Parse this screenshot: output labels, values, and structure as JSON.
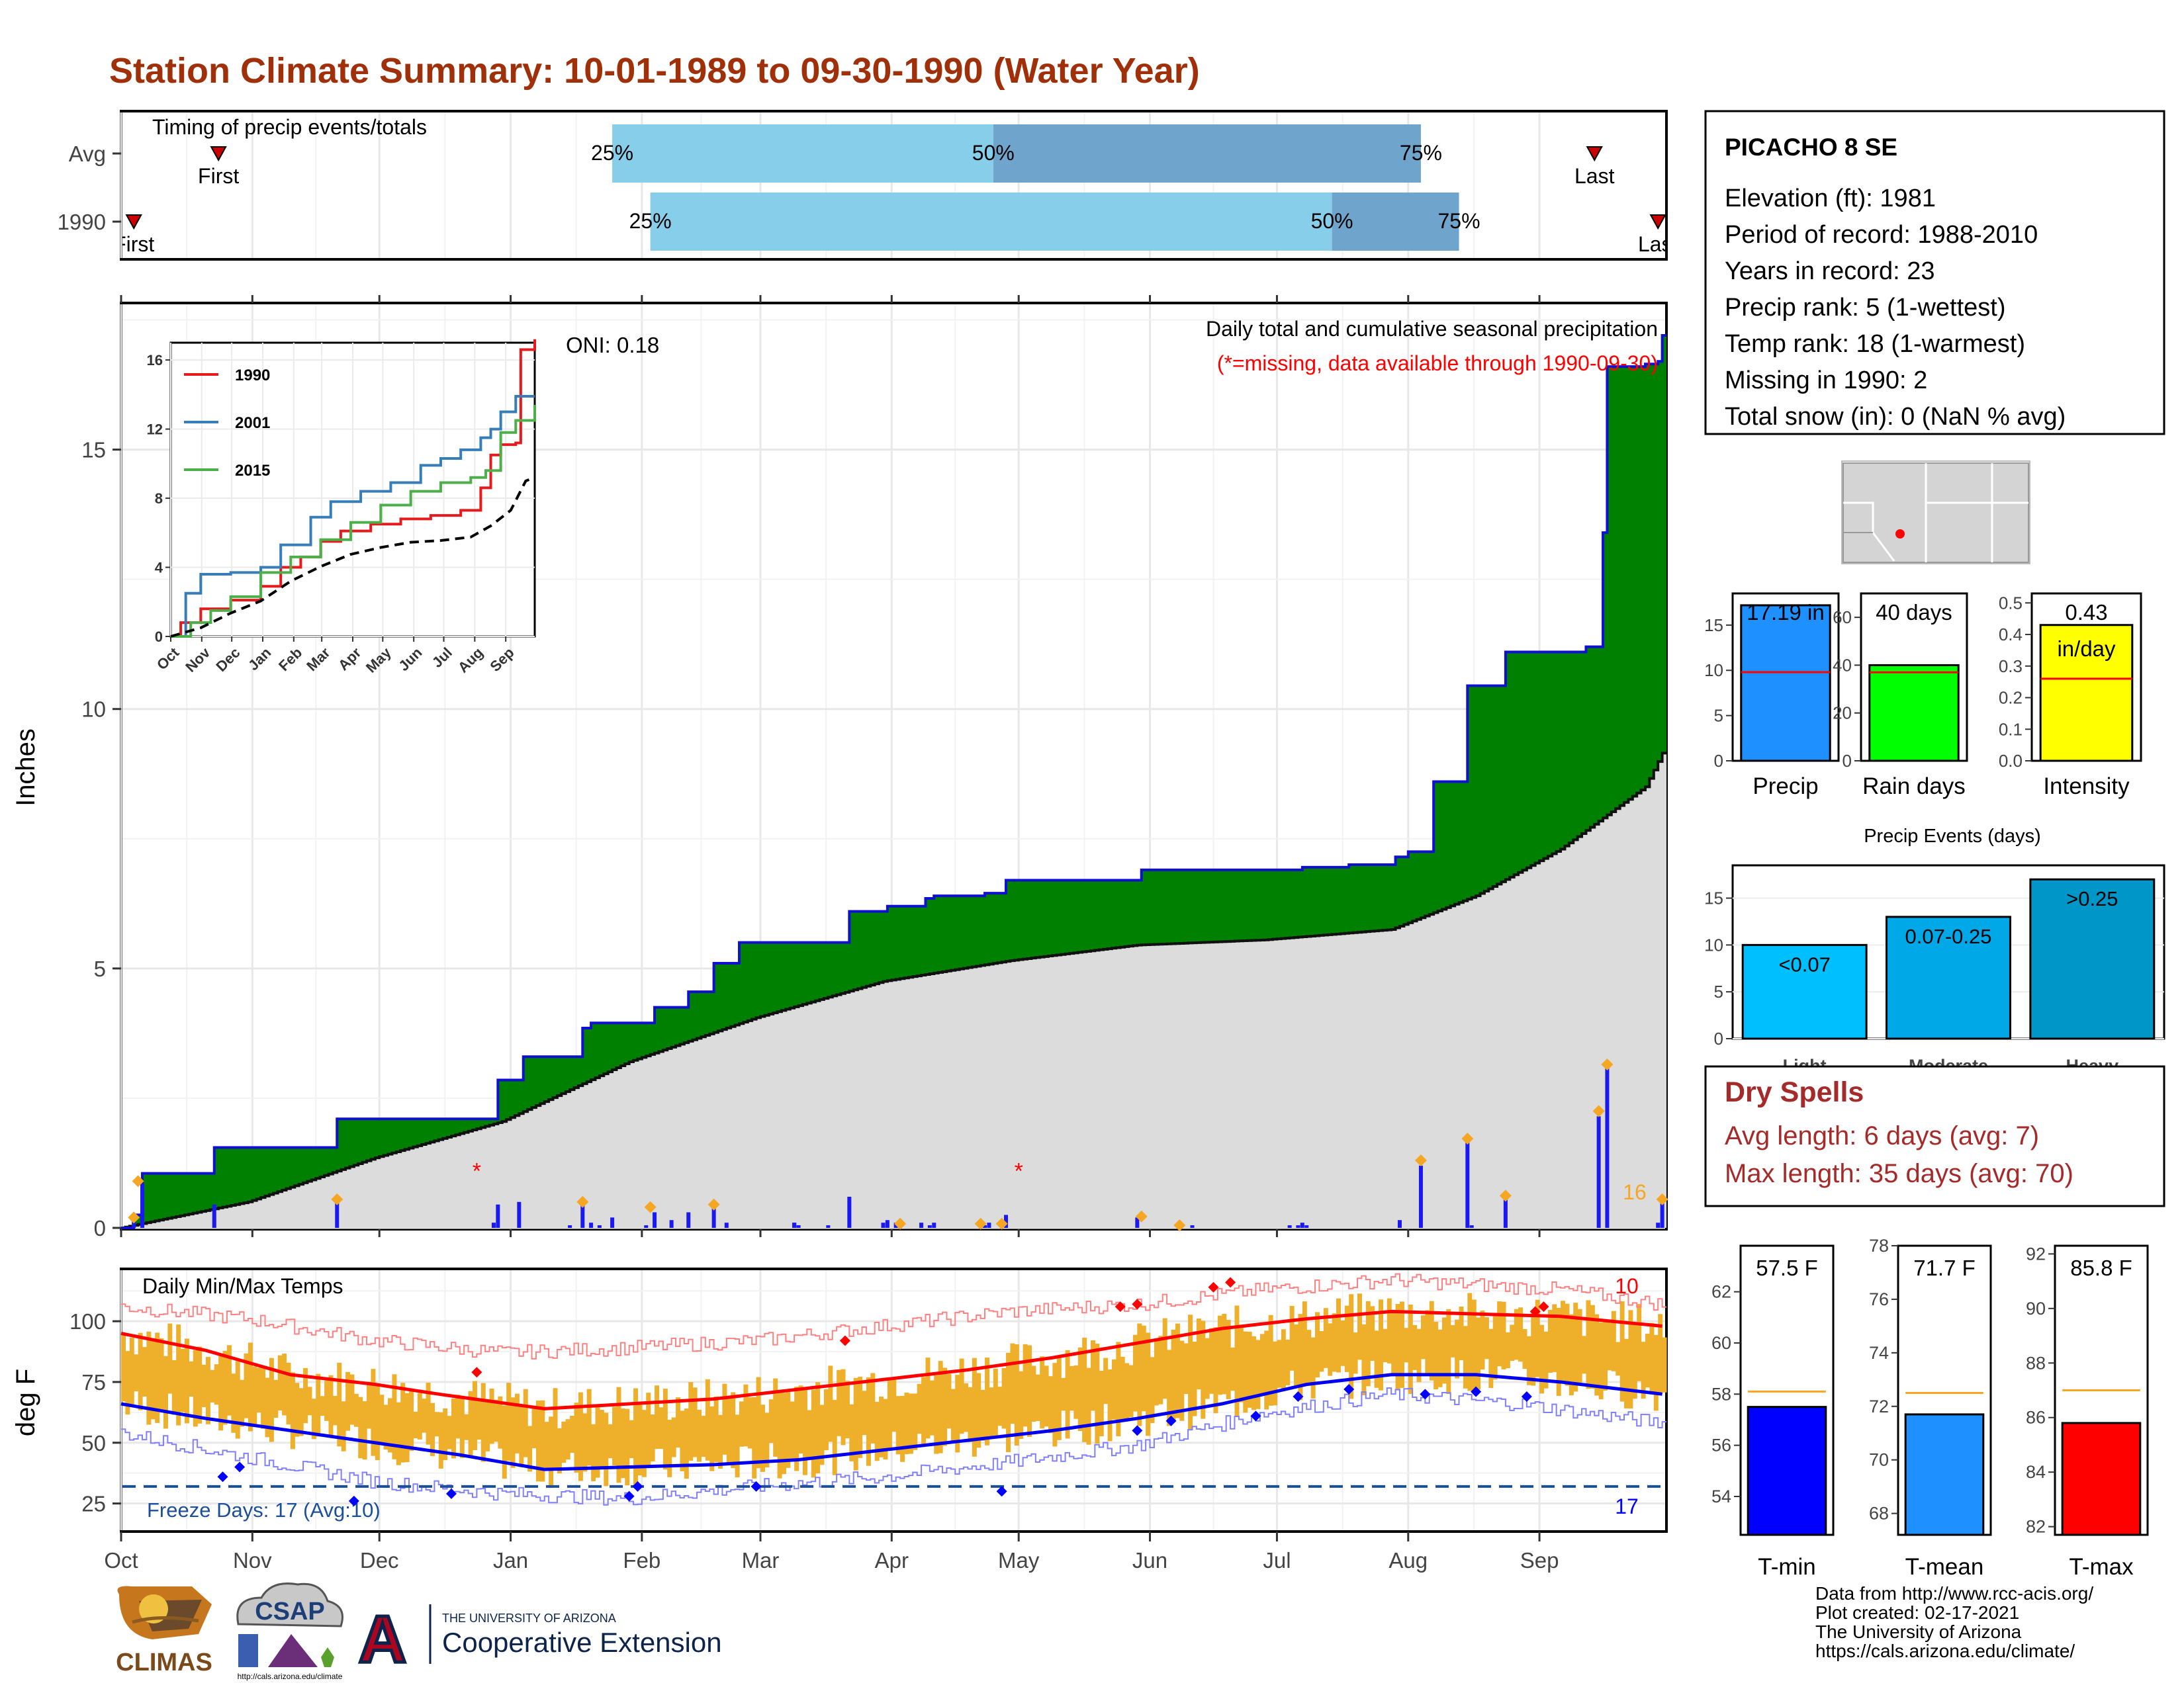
{
  "page": {
    "title": "Station Climate Summary: 10-01-1989 to 09-30-1990 (Water Year)",
    "footer_lines": [
      "Data from http://www.rcc-acis.org/",
      "Plot created: 02-17-2021",
      "The University of Arizona",
      "https://cals.arizona.edu/climate/"
    ],
    "logos": {
      "climas": "CLIMAS",
      "csap": "CSAP",
      "csap_url": "http://cals.arizona.edu/climate",
      "ua_letter": "A",
      "ua_small": "THE UNIVERSITY OF ARIZONA",
      "ua_big": "Cooperative Extension"
    }
  },
  "months": [
    "Oct",
    "Nov",
    "Dec",
    "Jan",
    "Feb",
    "Mar",
    "Apr",
    "May",
    "Jun",
    "Jul",
    "Aug",
    "Sep"
  ],
  "timing": {
    "title": "Timing of precip events/totals",
    "rows": [
      {
        "label": "Avg",
        "first_day": 23,
        "p25_day": 116,
        "p50_day": 206,
        "p75_day": 307,
        "last_day": 348,
        "first_label": "First",
        "last_label": "Last",
        "p25_label": "25%",
        "p50_label": "50%",
        "p75_label": "75%"
      },
      {
        "label": "1990",
        "first_day": 3,
        "p25_day": 125,
        "p50_day": 286,
        "p75_day": 316,
        "last_day": 363,
        "first_label": "First",
        "last_label": "Last",
        "p25_label": "25%",
        "p50_label": "50%",
        "p75_label": "75%"
      }
    ],
    "colors": {
      "low": "#87ceeb",
      "mid": "#6fa5cc",
      "marker": "#cc0000"
    }
  },
  "precip": {
    "ylabel": "Inches",
    "oni": "ONI: 0.18",
    "desc1": "Daily total and cumulative seasonal precipitation",
    "desc2": "(*=missing, data available through 1990-09-30)",
    "ylim": [
      0,
      17.8
    ],
    "yticks": [
      0,
      5,
      10,
      15
    ],
    "cum_steps": [
      [
        0,
        0
      ],
      [
        3,
        0.25
      ],
      [
        5,
        1.05
      ],
      [
        21,
        1.05
      ],
      [
        22,
        1.55
      ],
      [
        50,
        1.55
      ],
      [
        51,
        2.1
      ],
      [
        88,
        2.1
      ],
      [
        89,
        2.85
      ],
      [
        94,
        2.85
      ],
      [
        95,
        3.3
      ],
      [
        108,
        3.3
      ],
      [
        109,
        3.85
      ],
      [
        110,
        3.85
      ],
      [
        111,
        3.95
      ],
      [
        125,
        3.95
      ],
      [
        126,
        4.25
      ],
      [
        133,
        4.25
      ],
      [
        134,
        4.55
      ],
      [
        139,
        4.55
      ],
      [
        140,
        5.1
      ],
      [
        145,
        5.1
      ],
      [
        146,
        5.5
      ],
      [
        159,
        5.5
      ],
      [
        160,
        5.5
      ],
      [
        159,
        5.5
      ],
      [
        165,
        5.5
      ],
      [
        171,
        5.5
      ],
      [
        172,
        6.1
      ],
      [
        180,
        6.1
      ],
      [
        181,
        6.2
      ],
      [
        189,
        6.2
      ],
      [
        190,
        6.35
      ],
      [
        191,
        6.35
      ],
      [
        192,
        6.4
      ],
      [
        203,
        6.4
      ],
      [
        204,
        6.45
      ],
      [
        205,
        6.45
      ],
      [
        206,
        6.45
      ],
      [
        208,
        6.45
      ],
      [
        209,
        6.7
      ],
      [
        240,
        6.7
      ],
      [
        241,
        6.9
      ],
      [
        278,
        6.9
      ],
      [
        279,
        6.95
      ],
      [
        289,
        6.95
      ],
      [
        290,
        7.0
      ],
      [
        300,
        7.0
      ],
      [
        301,
        7.15
      ],
      [
        303,
        7.15
      ],
      [
        304,
        7.25
      ],
      [
        309,
        7.25
      ],
      [
        310,
        8.6
      ],
      [
        317,
        8.6
      ],
      [
        318,
        10.45
      ],
      [
        326,
        10.45
      ],
      [
        327,
        11.1
      ],
      [
        345,
        11.1
      ],
      [
        346,
        11.2
      ],
      [
        349,
        11.2
      ],
      [
        350,
        13.4
      ],
      [
        351,
        16.6
      ],
      [
        359,
        16.6
      ],
      [
        360,
        16.65
      ],
      [
        362,
        16.65
      ],
      [
        363,
        16.7
      ],
      [
        364,
        17.2
      ]
    ],
    "avg_cum": [
      [
        0,
        0
      ],
      [
        30,
        0.5
      ],
      [
        60,
        1.35
      ],
      [
        90,
        2.05
      ],
      [
        120,
        3.2
      ],
      [
        150,
        4.05
      ],
      [
        180,
        4.75
      ],
      [
        210,
        5.15
      ],
      [
        240,
        5.45
      ],
      [
        270,
        5.55
      ],
      [
        300,
        5.75
      ],
      [
        320,
        6.4
      ],
      [
        340,
        7.3
      ],
      [
        360,
        8.5
      ],
      [
        364,
        9.15
      ]
    ],
    "daily": [
      [
        3,
        0.25
      ],
      [
        5,
        0.85
      ],
      [
        22,
        0.45
      ],
      [
        51,
        0.55
      ],
      [
        88,
        0.1
      ],
      [
        89,
        0.45
      ],
      [
        94,
        0.5
      ],
      [
        106,
        0.05
      ],
      [
        109,
        0.55
      ],
      [
        111,
        0.1
      ],
      [
        113,
        0.05
      ],
      [
        116,
        0.2
      ],
      [
        124,
        0.05
      ],
      [
        126,
        0.3
      ],
      [
        130,
        0.15
      ],
      [
        134,
        0.3
      ],
      [
        140,
        0.4
      ],
      [
        143,
        0.1
      ],
      [
        159,
        0.1
      ],
      [
        160,
        0.05
      ],
      [
        159,
        0.1
      ],
      [
        160,
        0.05
      ],
      [
        167,
        0.05
      ],
      [
        172,
        0.6
      ],
      [
        180,
        0.1
      ],
      [
        181,
        0.15
      ],
      [
        183,
        0.1
      ],
      [
        189,
        0.1
      ],
      [
        191,
        0.05
      ],
      [
        192,
        0.1
      ],
      [
        204,
        0.05
      ],
      [
        205,
        0.1
      ],
      [
        209,
        0.25
      ],
      [
        240,
        0.2
      ],
      [
        253,
        0.05
      ],
      [
        276,
        0.05
      ],
      [
        278,
        0.05
      ],
      [
        279,
        0.1
      ],
      [
        280,
        0.05
      ],
      [
        302,
        0.15
      ],
      [
        307,
        1.2
      ],
      [
        318,
        1.65
      ],
      [
        319,
        0.05
      ],
      [
        327,
        0.55
      ],
      [
        349,
        2.15
      ],
      [
        351,
        3.2
      ],
      [
        364,
        0.6
      ],
      [
        363,
        0.1
      ]
    ],
    "daily_markers": [
      [
        3,
        0.2
      ],
      [
        4,
        0.9
      ],
      [
        51,
        0.55
      ],
      [
        109,
        0.5
      ],
      [
        125,
        0.4
      ],
      [
        140,
        0.45
      ],
      [
        184,
        0.08
      ],
      [
        203,
        0.08
      ],
      [
        208,
        0.08
      ],
      [
        241,
        0.22
      ],
      [
        250,
        0.05
      ],
      [
        307,
        1.3
      ],
      [
        318,
        1.72
      ],
      [
        327,
        0.62
      ],
      [
        349,
        2.25
      ],
      [
        351,
        3.15
      ],
      [
        364,
        0.55
      ]
    ],
    "missing_days": [
      84,
      212
    ],
    "missing_mark": "*",
    "count_label": "16",
    "colors": {
      "fill": "#008000",
      "cum_line": "#1010d0",
      "avg_fill": "#dcdcdc",
      "daily": "#1a1af0",
      "marker": "#f5a623",
      "missing": "#ff0000"
    }
  },
  "inset": {
    "yticks": [
      0,
      4,
      8,
      12,
      16
    ],
    "ylim": [
      0,
      17
    ],
    "series": [
      {
        "name": "1990",
        "color": "#e41a1c",
        "points": [
          [
            0,
            0
          ],
          [
            10,
            0.8
          ],
          [
            30,
            1.6
          ],
          [
            60,
            2.1
          ],
          [
            90,
            2.9
          ],
          [
            110,
            4.0
          ],
          [
            130,
            4.6
          ],
          [
            150,
            5.5
          ],
          [
            170,
            6.1
          ],
          [
            200,
            6.5
          ],
          [
            230,
            6.8
          ],
          [
            260,
            7.0
          ],
          [
            290,
            7.3
          ],
          [
            310,
            8.6
          ],
          [
            320,
            10.5
          ],
          [
            330,
            11.1
          ],
          [
            345,
            11.2
          ],
          [
            350,
            16.6
          ],
          [
            364,
            17.2
          ]
        ]
      },
      {
        "name": "2001",
        "color": "#377eb8",
        "points": [
          [
            0,
            0
          ],
          [
            15,
            2.5
          ],
          [
            30,
            3.6
          ],
          [
            60,
            3.7
          ],
          [
            90,
            4.0
          ],
          [
            110,
            5.3
          ],
          [
            140,
            6.9
          ],
          [
            160,
            7.8
          ],
          [
            190,
            8.4
          ],
          [
            220,
            8.9
          ],
          [
            250,
            9.9
          ],
          [
            270,
            10.3
          ],
          [
            290,
            10.8
          ],
          [
            310,
            11.5
          ],
          [
            320,
            12.0
          ],
          [
            330,
            13.0
          ],
          [
            345,
            13.9
          ],
          [
            364,
            13.9
          ]
        ]
      },
      {
        "name": "2015",
        "color": "#4daf4a",
        "points": [
          [
            0,
            0
          ],
          [
            20,
            0.8
          ],
          [
            40,
            1.5
          ],
          [
            60,
            2.3
          ],
          [
            90,
            3.7
          ],
          [
            120,
            4.6
          ],
          [
            150,
            5.6
          ],
          [
            180,
            6.6
          ],
          [
            210,
            7.6
          ],
          [
            240,
            8.4
          ],
          [
            270,
            8.9
          ],
          [
            300,
            9.2
          ],
          [
            315,
            9.6
          ],
          [
            330,
            11.8
          ],
          [
            345,
            12.5
          ],
          [
            364,
            13.4
          ]
        ]
      },
      {
        "name": "Avg",
        "color": "#000000",
        "dash": true,
        "points": [
          [
            0,
            0
          ],
          [
            30,
            0.5
          ],
          [
            60,
            1.35
          ],
          [
            90,
            2.05
          ],
          [
            120,
            3.2
          ],
          [
            150,
            4.05
          ],
          [
            180,
            4.75
          ],
          [
            210,
            5.15
          ],
          [
            240,
            5.45
          ],
          [
            270,
            5.55
          ],
          [
            300,
            5.75
          ],
          [
            320,
            6.4
          ],
          [
            340,
            7.3
          ],
          [
            355,
            9.0
          ],
          [
            364,
            9.2
          ]
        ]
      }
    ]
  },
  "temps": {
    "title": "Daily Min/Max Temps",
    "ylabel": "deg F",
    "ylim": [
      14,
      121
    ],
    "yticks": [
      25,
      50,
      75,
      100
    ],
    "freeze_label": "Freeze Days: 17 (Avg:10)",
    "freeze_line": 32,
    "count_top": "10",
    "count_bottom": "17",
    "avg_max": [
      [
        0,
        95
      ],
      [
        20,
        88
      ],
      [
        40,
        78
      ],
      [
        60,
        74
      ],
      [
        75,
        70
      ],
      [
        100,
        64
      ],
      [
        120,
        66
      ],
      [
        140,
        68
      ],
      [
        160,
        72
      ],
      [
        180,
        76
      ],
      [
        200,
        80
      ],
      [
        220,
        85
      ],
      [
        240,
        91
      ],
      [
        260,
        97
      ],
      [
        280,
        101
      ],
      [
        300,
        104
      ],
      [
        320,
        103
      ],
      [
        340,
        102
      ],
      [
        364,
        98
      ]
    ],
    "avg_min": [
      [
        0,
        66
      ],
      [
        20,
        60
      ],
      [
        40,
        55
      ],
      [
        60,
        50
      ],
      [
        80,
        45
      ],
      [
        100,
        39
      ],
      [
        120,
        40
      ],
      [
        140,
        41
      ],
      [
        160,
        43
      ],
      [
        180,
        47
      ],
      [
        200,
        51
      ],
      [
        220,
        55
      ],
      [
        240,
        60
      ],
      [
        260,
        66
      ],
      [
        280,
        74
      ],
      [
        300,
        78
      ],
      [
        320,
        78
      ],
      [
        340,
        75
      ],
      [
        364,
        70
      ]
    ],
    "rec_max": [
      [
        0,
        106
      ],
      [
        30,
        101
      ],
      [
        60,
        92
      ],
      [
        90,
        87
      ],
      [
        120,
        89
      ],
      [
        150,
        92
      ],
      [
        180,
        98
      ],
      [
        210,
        104
      ],
      [
        240,
        107
      ],
      [
        270,
        113
      ],
      [
        300,
        117
      ],
      [
        320,
        115
      ],
      [
        340,
        113
      ],
      [
        364,
        107
      ]
    ],
    "rec_min": [
      [
        0,
        54
      ],
      [
        30,
        44
      ],
      [
        60,
        34
      ],
      [
        90,
        29
      ],
      [
        120,
        27
      ],
      [
        150,
        32
      ],
      [
        180,
        36
      ],
      [
        210,
        42
      ],
      [
        240,
        49
      ],
      [
        270,
        62
      ],
      [
        300,
        70
      ],
      [
        330,
        66
      ],
      [
        364,
        58
      ]
    ],
    "colors": {
      "bar": "#eeb02a",
      "avg_max": "#ff0000",
      "avg_min": "#0000ee",
      "rec_max": "#ff8080",
      "rec_min": "#8080ff",
      "freeze": "#1b4f9c",
      "hot": "#ff0000",
      "cold": "#0000ff"
    }
  },
  "station": {
    "name": "PICACHO 8 SE",
    "lines": [
      "Elevation (ft): 1981",
      "Period of record: 1988-2010",
      "Years in record: 23",
      "Precip rank: 5 (1-wettest)",
      "Temp rank: 18 (1-warmest)",
      "Missing in 1990: 2",
      "Total snow (in): 0 (NaN % avg)"
    ]
  },
  "summary_bars": [
    {
      "name": "Precip",
      "value": 17.19,
      "label": "17.19 in",
      "avg": 9.8,
      "ylim": [
        0,
        18.5
      ],
      "yticks": [
        0,
        5,
        10,
        15
      ],
      "color": "#1e90ff"
    },
    {
      "name": "Rain days",
      "value": 40,
      "label": "40 days",
      "avg": 37,
      "ylim": [
        0,
        70
      ],
      "yticks": [
        0,
        20,
        40,
        60
      ],
      "color": "#00ff00"
    },
    {
      "name": "Intensity",
      "value": 0.43,
      "label": "0.43",
      "label2": "in/day",
      "avg": 0.26,
      "ylim": [
        0,
        0.53
      ],
      "yticks": [
        0.0,
        0.1,
        0.2,
        0.3,
        0.4,
        0.5
      ],
      "color": "#ffff00"
    }
  ],
  "events": {
    "title": "Precip Events (days)",
    "categories": [
      "Light",
      "Moderate",
      "Heavy"
    ],
    "values": [
      10,
      13,
      17
    ],
    "labels": [
      "<0.07",
      "0.07-0.25",
      ">0.25"
    ],
    "ylim": [
      0,
      18.5
    ],
    "yticks": [
      0,
      5,
      10,
      15
    ],
    "colors": [
      "#00bfff",
      "#00a8e8",
      "#0096c7"
    ]
  },
  "dry_spells": {
    "title": "Dry Spells",
    "lines": [
      "Avg length: 6 days (avg: 7)",
      "Max length: 35 days (avg: 70)"
    ],
    "color": "#a52a2a"
  },
  "temp_bars": [
    {
      "name": "T-min",
      "value": 57.5,
      "label": "57.5 F",
      "avg": 58.1,
      "ylim": [
        52.5,
        63.8
      ],
      "yticks": [
        54,
        56,
        58,
        60,
        62
      ],
      "color": "#0000ff"
    },
    {
      "name": "T-mean",
      "value": 71.7,
      "label": "71.7 F",
      "avg": 72.5,
      "ylim": [
        67.2,
        78.0
      ],
      "yticks": [
        68,
        70,
        72,
        74,
        76,
        78
      ],
      "color": "#1e90ff"
    },
    {
      "name": "T-max",
      "value": 85.8,
      "label": "85.8 F",
      "avg": 87.0,
      "ylim": [
        81.7,
        92.3
      ],
      "yticks": [
        82,
        84,
        86,
        88,
        90,
        92
      ],
      "color": "#ff0000"
    }
  ]
}
